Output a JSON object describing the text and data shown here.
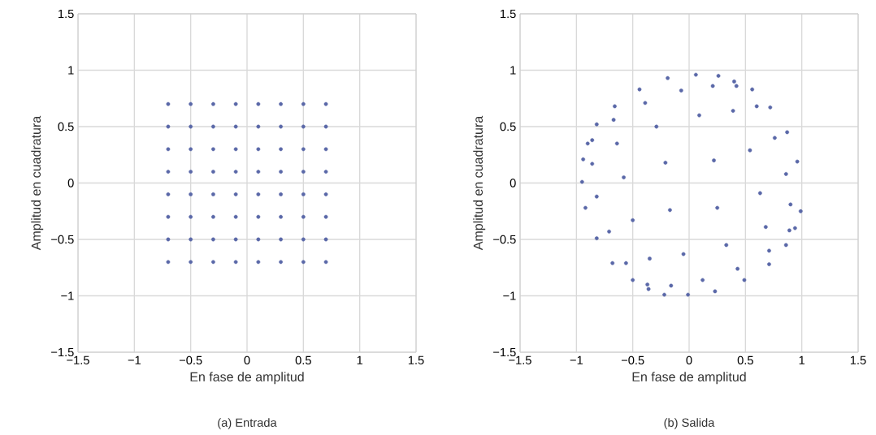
{
  "chart_data": [
    {
      "type": "scatter",
      "xlabel": "En fase de amplitud",
      "ylabel": "Amplitud en cuadratura",
      "annotations": [
        "(a) Entrada"
      ],
      "color": "#5a68a8",
      "marker": "circle",
      "grid": true,
      "x": [
        -0.7,
        -0.5,
        -0.3,
        -0.1,
        0.1,
        0.3,
        0.5,
        0.7,
        -0.7,
        -0.5,
        -0.3,
        -0.1,
        0.1,
        0.3,
        0.5,
        0.7,
        -0.7,
        -0.5,
        -0.3,
        -0.1,
        0.1,
        0.3,
        0.5,
        0.7,
        -0.7,
        -0.5,
        -0.3,
        -0.1,
        0.1,
        0.3,
        0.5,
        0.7,
        -0.7,
        -0.5,
        -0.3,
        -0.1,
        0.1,
        0.3,
        0.5,
        0.7,
        -0.7,
        -0.5,
        -0.3,
        -0.1,
        0.1,
        0.3,
        0.5,
        0.7,
        -0.7,
        -0.5,
        -0.3,
        -0.1,
        0.1,
        0.3,
        0.5,
        0.7,
        -0.7,
        -0.5,
        -0.3,
        -0.1,
        0.1,
        0.3,
        0.5,
        0.7
      ],
      "values": [
        0.7,
        0.7,
        0.7,
        0.7,
        0.7,
        0.7,
        0.7,
        0.7,
        0.5,
        0.5,
        0.5,
        0.5,
        0.5,
        0.5,
        0.5,
        0.5,
        0.3,
        0.3,
        0.3,
        0.3,
        0.3,
        0.3,
        0.3,
        0.3,
        0.1,
        0.1,
        0.1,
        0.1,
        0.1,
        0.1,
        0.1,
        0.1,
        -0.1,
        -0.1,
        -0.1,
        -0.1,
        -0.1,
        -0.1,
        -0.1,
        -0.1,
        -0.3,
        -0.3,
        -0.3,
        -0.3,
        -0.3,
        -0.3,
        -0.3,
        -0.3,
        -0.5,
        -0.5,
        -0.5,
        -0.5,
        -0.5,
        -0.5,
        -0.5,
        -0.5,
        -0.7,
        -0.7,
        -0.7,
        -0.7,
        -0.7,
        -0.7,
        -0.7,
        -0.7
      ],
      "xlim": [
        -1.5,
        1.5
      ],
      "ylim": [
        -1.5,
        1.5
      ],
      "xticks": [
        {
          "value": -1.5,
          "label": "−1.5"
        },
        {
          "value": -1,
          "label": "−1"
        },
        {
          "value": -0.5,
          "label": "−0.5"
        },
        0,
        0.5,
        1,
        1.5
      ],
      "yticks": [
        {
          "value": -1.5,
          "label": "−1.5"
        },
        {
          "value": -1,
          "label": "−1"
        },
        {
          "value": -0.5,
          "label": "−0.5"
        },
        0,
        0.5,
        1,
        1.5
      ]
    },
    {
      "type": "scatter",
      "xlabel": "En fase de amplitud",
      "ylabel": "Amplitud en cuadratura",
      "annotations": [
        "(b) Salida"
      ],
      "color": "#5a68a8",
      "marker": "circle",
      "grid": true,
      "x": [
        0.06,
        0.26,
        0.21,
        0.4,
        0.42,
        0.56,
        0.6,
        0.72,
        0.09,
        0.39,
        0.87,
        0.76,
        0.54,
        0.22,
        0.96,
        0.86,
        0.63,
        0.9,
        0.99,
        0.25,
        0.68,
        0.89,
        0.94,
        0.33,
        0.86,
        0.71,
        0.71,
        0.43,
        0.12,
        0.49,
        0.23,
        -0.01,
        -0.19,
        -0.07,
        -0.44,
        -0.39,
        -0.66,
        -0.67,
        -0.82,
        -0.29,
        -0.86,
        -0.9,
        -0.64,
        -0.94,
        -0.86,
        -0.21,
        -0.58,
        -0.95,
        -0.82,
        -0.92,
        -0.17,
        -0.5,
        -0.71,
        -0.82,
        -0.35,
        -0.05,
        -0.68,
        -0.56,
        -0.5,
        -0.37,
        -0.36,
        -0.16,
        -0.22
      ],
      "values": [
        0.96,
        0.95,
        0.86,
        0.9,
        0.86,
        0.83,
        0.68,
        0.67,
        0.6,
        0.64,
        0.45,
        0.4,
        0.29,
        0.2,
        0.19,
        0.08,
        -0.09,
        -0.19,
        -0.25,
        -0.22,
        -0.39,
        -0.42,
        -0.4,
        -0.55,
        -0.55,
        -0.6,
        -0.72,
        -0.76,
        -0.86,
        -0.86,
        -0.96,
        -0.99,
        0.93,
        0.82,
        0.83,
        0.71,
        0.68,
        0.56,
        0.52,
        0.5,
        0.38,
        0.35,
        0.35,
        0.21,
        0.17,
        0.18,
        0.05,
        0.01,
        -0.12,
        -0.22,
        -0.24,
        -0.33,
        -0.43,
        -0.49,
        -0.67,
        -0.63,
        -0.71,
        -0.71,
        -0.86,
        -0.9,
        -0.94,
        -0.91,
        -0.99
      ],
      "xlim": [
        -1.5,
        1.5
      ],
      "ylim": [
        -1.5,
        1.5
      ],
      "xticks": [
        {
          "value": -1.5,
          "label": "−1.5"
        },
        {
          "value": -1,
          "label": "−1"
        },
        {
          "value": -0.5,
          "label": "−0.5"
        },
        0,
        0.5,
        1,
        1.5
      ],
      "yticks": [
        {
          "value": -1.5,
          "label": "−1.5"
        },
        {
          "value": -1,
          "label": "−1"
        },
        {
          "value": -0.5,
          "label": "−0.5"
        },
        0,
        0.5,
        1,
        1.5
      ]
    }
  ]
}
